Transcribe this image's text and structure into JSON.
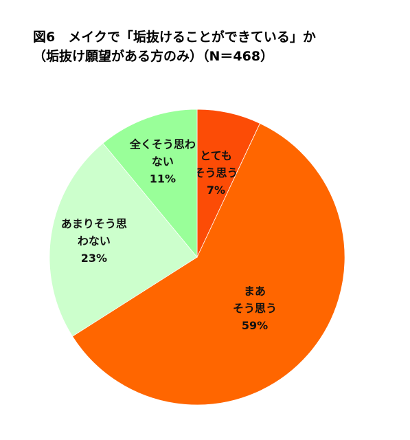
{
  "chart_data": {
    "type": "pie",
    "title_line1": "図6　メイクで「垢抜けることができている」か",
    "title_line2": "（垢抜け願望がある方のみ）（N＝468）",
    "slices": [
      {
        "label_lines": [
          "とても",
          "そう思う"
        ],
        "value_text": "7%",
        "value": 7,
        "color": "#fc4c06"
      },
      {
        "label_lines": [
          "まあ",
          "そう思う"
        ],
        "value_text": "59%",
        "value": 59,
        "color": "#ff6600"
      },
      {
        "label_lines": [
          "あまりそう思",
          "わない"
        ],
        "value_text": "23%",
        "value": 23,
        "color": "#ccffcc"
      },
      {
        "label_lines": [
          "全くそう思わ",
          "ない"
        ],
        "value_text": "11%",
        "value": 11,
        "color": "#99ff99"
      }
    ],
    "start": "12 o'clock",
    "direction": "clockwise"
  }
}
